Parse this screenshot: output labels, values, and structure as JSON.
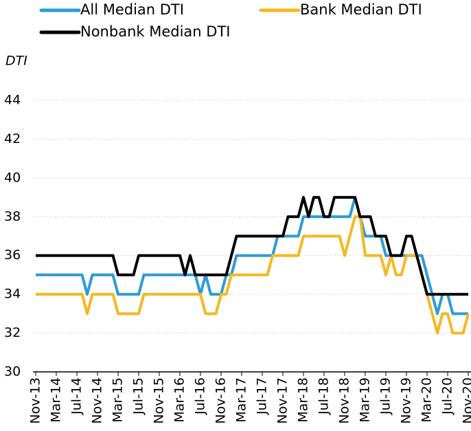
{
  "chart_data": {
    "type": "line",
    "y_label": "DTI",
    "categories": [
      "Nov-13",
      null,
      null,
      null,
      "Mar-14",
      null,
      null,
      null,
      "Jul-14",
      null,
      null,
      null,
      "Nov-14",
      null,
      null,
      null,
      "Mar-15",
      null,
      null,
      null,
      "Jul-15",
      null,
      null,
      null,
      "Nov-15",
      null,
      null,
      null,
      "Mar-16",
      null,
      null,
      null,
      "Jul-16",
      null,
      null,
      null,
      "Nov-16",
      null,
      null,
      null,
      "Mar-17",
      null,
      null,
      null,
      "Jul-17",
      null,
      null,
      null,
      "Nov-17",
      null,
      null,
      null,
      "Mar-18",
      null,
      null,
      null,
      "Jul-18",
      null,
      null,
      null,
      "Nov-18",
      null,
      null,
      null,
      "Mar-19",
      null,
      null,
      null,
      "Jul-19",
      null,
      null,
      null,
      "Nov-19",
      null,
      null,
      null,
      "Mar-20",
      null,
      null,
      null,
      "Jul-20",
      null,
      null,
      null,
      "Nov-20"
    ],
    "series": [
      {
        "name": "All Median DTI",
        "color": "#2e9bd6",
        "values": [
          35,
          35,
          35,
          35,
          35,
          35,
          35,
          35,
          35,
          35,
          34,
          35,
          35,
          35,
          35,
          35,
          34,
          34,
          34,
          34,
          34,
          35,
          35,
          35,
          35,
          35,
          35,
          35,
          35,
          35,
          35,
          35,
          34,
          35,
          34,
          34,
          34,
          35,
          35,
          36,
          36,
          36,
          36,
          36,
          36,
          36,
          36,
          37,
          37,
          37,
          37,
          37,
          38,
          38,
          38,
          38,
          38,
          38,
          38,
          38,
          38,
          38,
          39,
          38,
          37,
          37,
          37,
          37,
          36,
          36,
          36,
          36,
          36,
          36,
          36,
          36,
          35,
          34,
          33,
          34,
          34,
          33,
          33,
          33,
          33
        ]
      },
      {
        "name": "Bank Median DTI",
        "color": "#f5b820",
        "values": [
          34,
          34,
          34,
          34,
          34,
          34,
          34,
          34,
          34,
          34,
          33,
          34,
          34,
          34,
          34,
          34,
          33,
          33,
          33,
          33,
          33,
          34,
          34,
          34,
          34,
          34,
          34,
          34,
          34,
          34,
          34,
          34,
          34,
          33,
          33,
          33,
          34,
          34,
          35,
          35,
          35,
          35,
          35,
          35,
          35,
          35,
          36,
          36,
          36,
          36,
          36,
          36,
          37,
          37,
          37,
          37,
          37,
          37,
          37,
          37,
          36,
          37,
          38,
          38,
          36,
          36,
          36,
          36,
          35,
          36,
          35,
          35,
          36,
          36,
          36,
          35,
          34,
          33,
          32,
          33,
          33,
          32,
          32,
          32,
          33
        ]
      },
      {
        "name": "Nonbank Median DTI",
        "color": "#000000",
        "values": [
          36,
          36,
          36,
          36,
          36,
          36,
          36,
          36,
          36,
          36,
          36,
          36,
          36,
          36,
          36,
          36,
          35,
          35,
          35,
          35,
          36,
          36,
          36,
          36,
          36,
          36,
          36,
          36,
          36,
          35,
          36,
          35,
          35,
          35,
          35,
          35,
          35,
          35,
          36,
          37,
          37,
          37,
          37,
          37,
          37,
          37,
          37,
          37,
          37,
          38,
          38,
          38,
          39,
          38,
          39,
          39,
          38,
          38,
          39,
          39,
          39,
          39,
          39,
          38,
          38,
          38,
          37,
          37,
          37,
          36,
          36,
          36,
          37,
          37,
          36,
          35,
          34,
          34,
          34,
          34,
          34,
          34,
          34,
          34,
          34
        ]
      }
    ],
    "ylim": [
      30,
      44
    ],
    "yticks": [
      30,
      32,
      34,
      36,
      38,
      40,
      42,
      44
    ],
    "grid": true
  }
}
